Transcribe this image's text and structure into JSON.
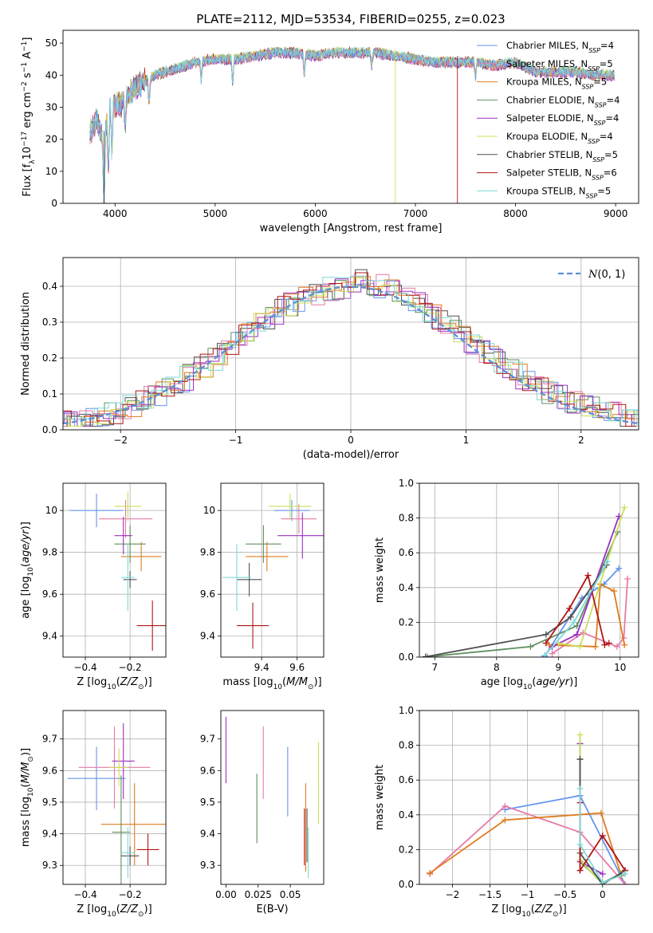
{
  "figure": {
    "title": "PLATE=2112, MJD=53534, FIBERID=0255, z=0.023"
  },
  "colors": {
    "Chabrier MILES": "#6495ed",
    "Salpeter MILES": "#e67aa9",
    "Kroupa MILES": "#e07b1e",
    "Chabrier ELODIE": "#5f8f5f",
    "Salpeter ELODIE": "#9b30c0",
    "Kroupa ELODIE": "#c8e05a",
    "Chabrier STELIB": "#505050",
    "Salpeter STELIB": "#b01414",
    "Kroupa STELIB": "#7fd8d8",
    "gauss": "#5b8ed8"
  },
  "chart_data": [
    {
      "id": "spectrum",
      "type": "line",
      "xlabel": "wavelength [Angstrom, rest frame]",
      "ylabel": "Flux [fλ10⁻¹⁷ erg cm⁻² s⁻¹ A⁻¹]",
      "xlim": [
        3480,
        9230
      ],
      "ylim": [
        0,
        54
      ],
      "xticks": [
        4000,
        5000,
        6000,
        7000,
        8000,
        9000
      ],
      "yticks": [
        0,
        10,
        20,
        30,
        40,
        50
      ],
      "grid": false,
      "legend_position": "top-right",
      "spectrum_anchors": {
        "x": [
          3750,
          3820,
          3880,
          3950,
          4050,
          4200,
          4400,
          4600,
          4800,
          5000,
          5200,
          5400,
          5600,
          5800,
          6000,
          6200,
          6400,
          6600,
          6800,
          7000,
          7200,
          7400,
          7600,
          7800,
          8000,
          8200,
          8400,
          8600,
          8800,
          8990
        ],
        "y": [
          22,
          26,
          19,
          30,
          31,
          36,
          40,
          42,
          44,
          45,
          45,
          46,
          47,
          47,
          46,
          47,
          47,
          47,
          46,
          45,
          44,
          44,
          44,
          43,
          44,
          41,
          41,
          41,
          40,
          40
        ]
      },
      "legend_entries": [
        {
          "name": "Chabrier MILES, N",
          "sub": "SSP",
          "suffix": "=4"
        },
        {
          "name": "Salpeter MILES, N",
          "sub": "SSP",
          "suffix": "=5"
        },
        {
          "name": "Kroupa MILES, N",
          "sub": "SSP",
          "suffix": "=5"
        },
        {
          "name": "Chabrier ELODIE, N",
          "sub": "SSP",
          "suffix": "=4"
        },
        {
          "name": "Salpeter ELODIE, N",
          "sub": "SSP",
          "suffix": "=4"
        },
        {
          "name": "Kroupa ELODIE, N",
          "sub": "SSP",
          "suffix": "=4"
        },
        {
          "name": "Chabrier STELIB, N",
          "sub": "SSP",
          "suffix": "=5"
        },
        {
          "name": "Salpeter STELIB, N",
          "sub": "SSP",
          "suffix": "=6"
        },
        {
          "name": "Kroupa STELIB, N",
          "sub": "SSP",
          "suffix": "=5"
        }
      ]
    },
    {
      "id": "residuals",
      "type": "histogram",
      "xlabel": "(data-model)/error",
      "ylabel": "Normed distribution",
      "xlim": [
        -2.5,
        2.5
      ],
      "ylim": [
        0,
        0.48
      ],
      "xticks": [
        -2,
        -1,
        0,
        1,
        2
      ],
      "yticks": [
        0.0,
        0.1,
        0.2,
        0.3,
        0.4
      ],
      "grid": true,
      "legend_position": "top-right",
      "reference_curve": {
        "label": "N(0,1)",
        "mean": 0,
        "sigma": 1
      }
    },
    {
      "id": "age-vs-Z",
      "type": "errorbar",
      "xlabel": "Z [log10(Z/Z⊙)]",
      "ylabel": "age  [log10(age/yr)]",
      "xlim": [
        -0.5,
        -0.04
      ],
      "ylim": [
        9.3,
        10.13
      ],
      "xticks": [
        -0.4,
        -0.2
      ],
      "yticks": [
        9.4,
        9.6,
        9.8,
        10.0
      ],
      "grid": true,
      "points": [
        {
          "model": "Chabrier MILES",
          "x": -0.35,
          "xerr": 0.12,
          "y": 10.0,
          "yerr": 0.08
        },
        {
          "model": "Salpeter MILES",
          "x": -0.22,
          "xerr": 0.12,
          "y": 9.96,
          "yerr": 0.09
        },
        {
          "model": "Kroupa MILES",
          "x": -0.15,
          "xerr": 0.09,
          "y": 9.78,
          "yerr": 0.07
        },
        {
          "model": "Chabrier ELODIE",
          "x": -0.2,
          "xerr": 0.07,
          "y": 9.84,
          "yerr": 0.09
        },
        {
          "model": "Salpeter ELODIE",
          "x": -0.23,
          "xerr": 0.04,
          "y": 9.88,
          "yerr": 0.09
        },
        {
          "model": "Kroupa ELODIE",
          "x": -0.21,
          "xerr": 0.06,
          "y": 10.02,
          "yerr": 0.07
        },
        {
          "model": "Chabrier STELIB",
          "x": -0.2,
          "xerr": 0.03,
          "y": 9.67,
          "yerr": 0.04
        },
        {
          "model": "Salpeter STELIB",
          "x": -0.1,
          "xerr": 0.07,
          "y": 9.45,
          "yerr": 0.12
        },
        {
          "model": "Kroupa STELIB",
          "x": -0.21,
          "xerr": 0.03,
          "y": 9.68,
          "yerr": 0.16
        }
      ]
    },
    {
      "id": "age-vs-mass",
      "type": "errorbar",
      "xlabel": "mass [log10(M/M⊙)]",
      "ylabel": "",
      "xlim": [
        9.17,
        9.75
      ],
      "ylim": [
        9.3,
        10.13
      ],
      "xticks": [
        9.4,
        9.6
      ],
      "yticks": [
        9.4,
        9.6,
        9.8,
        10.0
      ],
      "grid": true,
      "points": [
        {
          "model": "Chabrier MILES",
          "x": 9.57,
          "xerr": 0.1,
          "y": 10.0,
          "yerr": 0.05
        },
        {
          "model": "Salpeter MILES",
          "x": 9.61,
          "xerr": 0.1,
          "y": 9.96,
          "yerr": 0.07
        },
        {
          "model": "Kroupa MILES",
          "x": 9.43,
          "xerr": 0.12,
          "y": 9.78,
          "yerr": 0.07
        },
        {
          "model": "Chabrier ELODIE",
          "x": 9.41,
          "xerr": 0.1,
          "y": 9.84,
          "yerr": 0.09
        },
        {
          "model": "Salpeter ELODIE",
          "x": 9.63,
          "xerr": 0.14,
          "y": 9.88,
          "yerr": 0.11
        },
        {
          "model": "Kroupa ELODIE",
          "x": 9.56,
          "xerr": 0.12,
          "y": 10.02,
          "yerr": 0.06
        },
        {
          "model": "Chabrier STELIB",
          "x": 9.33,
          "xerr": 0.07,
          "y": 9.67,
          "yerr": 0.08
        },
        {
          "model": "Salpeter STELIB",
          "x": 9.35,
          "xerr": 0.09,
          "y": 9.45,
          "yerr": 0.11
        },
        {
          "model": "Kroupa STELIB",
          "x": 9.26,
          "xerr": 0.08,
          "y": 9.68,
          "yerr": 0.16
        }
      ]
    },
    {
      "id": "weight-vs-age",
      "type": "line",
      "xlabel": "age  [log10(age/yr)]",
      "ylabel": "mass weight",
      "xlim": [
        6.75,
        10.3
      ],
      "ylim": [
        0,
        1.0
      ],
      "xticks": [
        7,
        8,
        9,
        10
      ],
      "yticks": [
        0.0,
        0.2,
        0.4,
        0.6,
        0.8,
        1.0
      ],
      "grid": true,
      "series": [
        {
          "model": "Chabrier MILES",
          "x": [
            8.78,
            9.38,
            9.74,
            9.98
          ],
          "y": [
            0.005,
            0.34,
            0.42,
            0.51
          ]
        },
        {
          "model": "Salpeter MILES",
          "x": [
            8.9,
            9.4,
            9.95,
            10.06,
            10.12
          ],
          "y": [
            0.02,
            0.14,
            0.06,
            0.11,
            0.45
          ]
        },
        {
          "model": "Kroupa MILES",
          "x": [
            8.85,
            9.6,
            9.68,
            9.9,
            10.07
          ],
          "y": [
            0.07,
            0.06,
            0.42,
            0.38,
            0.07
          ]
        },
        {
          "model": "Chabrier ELODIE",
          "x": [
            6.88,
            8.55,
            9.3,
            9.96
          ],
          "y": [
            0.002,
            0.06,
            0.18,
            0.72
          ]
        },
        {
          "model": "Salpeter ELODIE",
          "x": [
            8.9,
            9.3,
            9.98
          ],
          "y": [
            0.06,
            0.13,
            0.81
          ]
        },
        {
          "model": "Kroupa ELODIE",
          "x": [
            9.0,
            9.35,
            10.07
          ],
          "y": [
            0.08,
            0.06,
            0.86
          ]
        },
        {
          "model": "Chabrier STELIB",
          "x": [
            6.85,
            8.8,
            9.2,
            9.78
          ],
          "y": [
            0.002,
            0.13,
            0.23,
            0.53
          ]
        },
        {
          "model": "Salpeter STELIB",
          "x": [
            8.8,
            9.18,
            9.48,
            9.75,
            9.82
          ],
          "y": [
            0.08,
            0.28,
            0.47,
            0.07,
            0.08
          ]
        },
        {
          "model": "Kroupa STELIB",
          "x": [
            8.78,
            9.25,
            9.8
          ],
          "y": [
            0.01,
            0.2,
            0.55
          ]
        }
      ]
    },
    {
      "id": "mass-vs-Z",
      "type": "errorbar",
      "xlabel": "Z [log10(Z/Z⊙)]",
      "ylabel": "mass [log10(M/M⊙)]",
      "xlim": [
        -0.5,
        -0.04
      ],
      "ylim": [
        9.24,
        9.79
      ],
      "xticks": [
        -0.4,
        -0.2
      ],
      "yticks": [
        9.3,
        9.4,
        9.5,
        9.6,
        9.7
      ],
      "grid": true,
      "points": [
        {
          "model": "Chabrier MILES",
          "x": -0.35,
          "xerr": 0.13,
          "y": 9.575,
          "yerr": 0.1
        },
        {
          "model": "Salpeter MILES",
          "x": -0.27,
          "xerr": 0.16,
          "y": 9.61,
          "yerr": 0.13
        },
        {
          "model": "Kroupa MILES",
          "x": -0.18,
          "xerr": 0.15,
          "y": 9.43,
          "yerr": 0.13
        },
        {
          "model": "Chabrier ELODIE",
          "x": -0.24,
          "xerr": 0.04,
          "y": 9.405,
          "yerr": 0.18
        },
        {
          "model": "Salpeter ELODIE",
          "x": -0.23,
          "xerr": 0.05,
          "y": 9.63,
          "yerr": 0.12
        },
        {
          "model": "Kroupa ELODIE",
          "x": -0.25,
          "xerr": 0.04,
          "y": 9.61,
          "yerr": 0.06
        },
        {
          "model": "Chabrier STELIB",
          "x": -0.2,
          "xerr": 0.04,
          "y": 9.33,
          "yerr": 0.03
        },
        {
          "model": "Salpeter STELIB",
          "x": -0.12,
          "xerr": 0.05,
          "y": 9.35,
          "yerr": 0.05
        },
        {
          "model": "Kroupa STELIB",
          "x": -0.21,
          "xerr": 0.03,
          "y": 9.34,
          "yerr": 0.08
        }
      ]
    },
    {
      "id": "mass-vs-ebv",
      "type": "errorbar",
      "xlabel": "E(B-V)",
      "ylabel": "",
      "xlim": [
        -0.004,
        0.076
      ],
      "ylim": [
        9.24,
        9.79
      ],
      "xticks": [
        0.0,
        0.025,
        0.05
      ],
      "xticklabels": [
        "0.00",
        "0.025",
        "0.05"
      ],
      "yticks": [
        9.3,
        9.4,
        9.5,
        9.6,
        9.7
      ],
      "grid": false,
      "points": [
        {
          "model": "Chabrier MILES",
          "x": 0.048,
          "y": 9.565,
          "yerr": 0.11
        },
        {
          "model": "Salpeter MILES",
          "x": 0.029,
          "y": 9.625,
          "yerr": 0.115
        },
        {
          "model": "Kroupa MILES",
          "x": 0.062,
          "y": 9.42,
          "yerr": 0.14
        },
        {
          "model": "Chabrier ELODIE",
          "x": 0.024,
          "y": 9.48,
          "yerr": 0.11
        },
        {
          "model": "Salpeter ELODIE",
          "x": 0.0,
          "y": 9.665,
          "yerr": 0.105
        },
        {
          "model": "Kroupa ELODIE",
          "x": 0.072,
          "y": 9.56,
          "yerr": 0.13
        },
        {
          "model": "Chabrier STELIB",
          "x": 0.063,
          "y": 9.395,
          "yerr": 0.085
        },
        {
          "model": "Salpeter STELIB",
          "x": 0.061,
          "y": 9.39,
          "yerr": 0.09
        },
        {
          "model": "Kroupa STELIB",
          "x": 0.064,
          "y": 9.34,
          "yerr": 0.08
        }
      ]
    },
    {
      "id": "weight-vs-Z",
      "type": "line",
      "xlabel": "Z [log10(Z/Z⊙)]",
      "ylabel": "mass weight",
      "xlim": [
        -2.44,
        0.48
      ],
      "ylim": [
        0,
        1.0
      ],
      "xticks": [
        -2.0,
        -1.5,
        -1.0,
        -0.5,
        0.0
      ],
      "yticks": [
        0.0,
        0.2,
        0.4,
        0.6,
        0.8,
        1.0
      ],
      "grid": true,
      "series": [
        {
          "model": "Chabrier MILES",
          "x": [
            -1.3,
            -0.3,
            -0.3,
            0.3
          ],
          "y": [
            0.43,
            0.51,
            0.51,
            0.0
          ]
        },
        {
          "model": "Salpeter MILES",
          "x": [
            -2.3,
            -1.3,
            -0.3,
            0.3
          ],
          "y": [
            0.06,
            0.45,
            0.3,
            0.0
          ]
        },
        {
          "model": "Kroupa MILES",
          "x": [
            -2.3,
            -1.3,
            -0.02,
            0.25
          ],
          "y": [
            0.065,
            0.37,
            0.41,
            0.05
          ]
        },
        {
          "model": "Chabrier ELODIE",
          "x": [
            -0.3,
            -0.3,
            0.0,
            0.25
          ],
          "y": [
            0.72,
            0.13,
            0.01,
            0.06
          ]
        },
        {
          "model": "Salpeter ELODIE",
          "x": [
            -0.3,
            -0.3,
            0.0
          ],
          "y": [
            0.81,
            0.13,
            0.06
          ]
        },
        {
          "model": "Kroupa ELODIE",
          "x": [
            -0.3,
            -0.3,
            0.0
          ],
          "y": [
            0.86,
            0.14,
            0.0
          ]
        },
        {
          "model": "Chabrier STELIB",
          "x": [
            -0.3,
            -0.3,
            0.0,
            0.3
          ],
          "y": [
            0.72,
            0.18,
            0.0,
            0.08
          ]
        },
        {
          "model": "Salpeter STELIB",
          "x": [
            -0.3,
            -0.3,
            0.0,
            0.3
          ],
          "y": [
            0.47,
            0.08,
            0.28,
            0.08
          ]
        },
        {
          "model": "Kroupa STELIB",
          "x": [
            -0.3,
            -0.3,
            0.0,
            0.3
          ],
          "y": [
            0.55,
            0.23,
            0.01,
            0.06
          ]
        }
      ]
    }
  ]
}
